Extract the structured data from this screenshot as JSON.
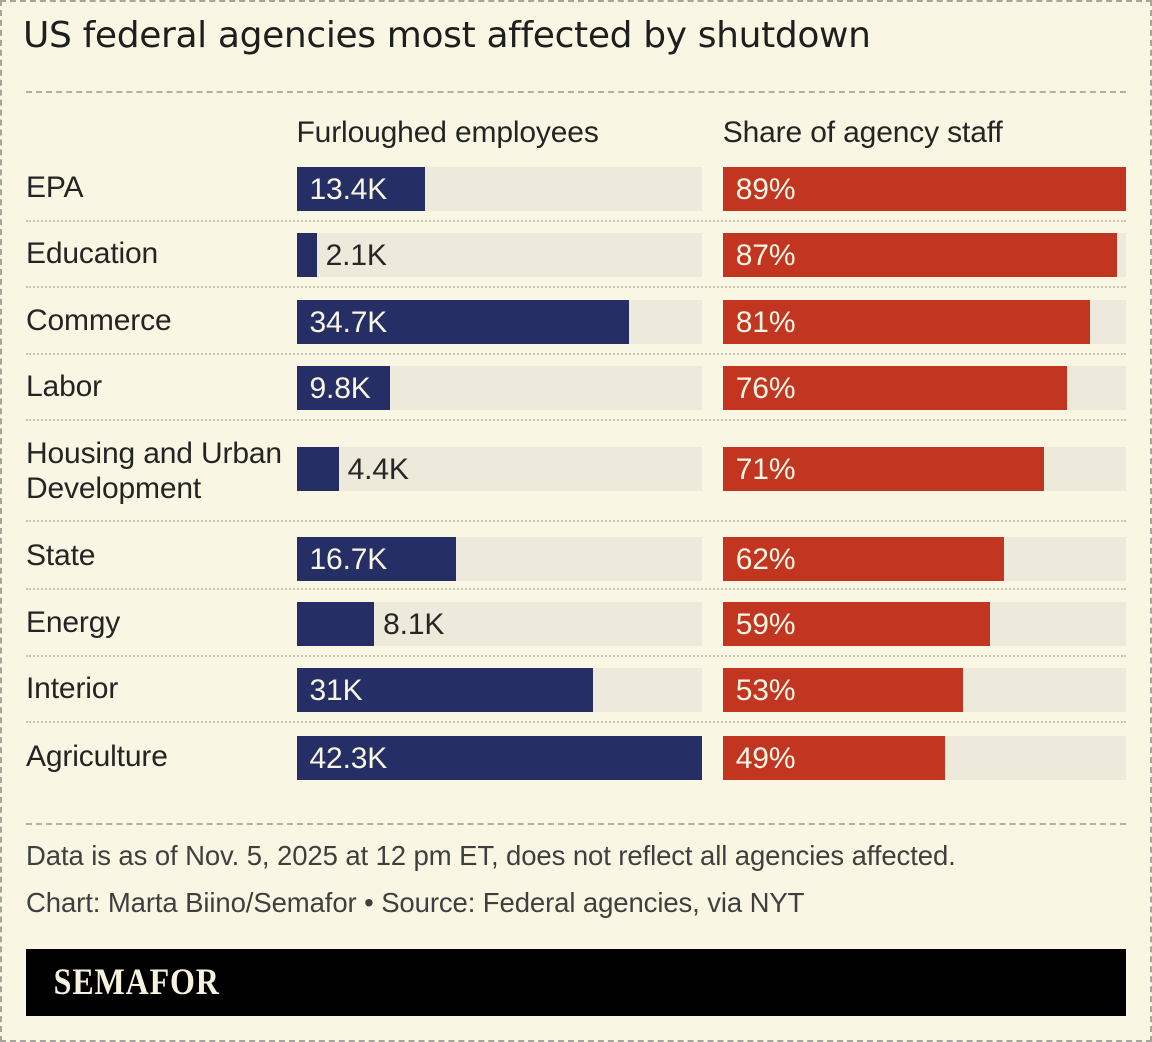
{
  "title": "US federal agencies most affected by shutdown",
  "chart_data": {
    "type": "bar",
    "title": "US federal agencies most affected by shutdown",
    "categories": [
      "EPA",
      "Education",
      "Commerce",
      "Labor",
      "Housing and Urban Development",
      "State",
      "Energy",
      "Interior",
      "Agriculture"
    ],
    "series": [
      {
        "name": "Furloughed employees",
        "values": [
          13.4,
          2.1,
          34.7,
          9.8,
          4.4,
          16.7,
          8.1,
          31,
          42.3
        ],
        "labels": [
          "13.4K",
          "2.1K",
          "34.7K",
          "9.8K",
          "4.4K",
          "16.7K",
          "8.1K",
          "31K",
          "42.3K"
        ],
        "axis_max": 42.3,
        "color": "#262e66"
      },
      {
        "name": "Share of agency staff",
        "values": [
          89,
          87,
          81,
          76,
          71,
          62,
          59,
          53,
          49
        ],
        "labels": [
          "89%",
          "87%",
          "81%",
          "76%",
          "71%",
          "62%",
          "59%",
          "53%",
          "49%"
        ],
        "axis_max": 89,
        "color": "#c23520"
      }
    ],
    "legend_position": "column-headers",
    "grid": false,
    "track_color": "#edeadb",
    "background_color": "#f9f6e3"
  },
  "notes": {
    "data_note": "Data is as of Nov. 5, 2025 at 12 pm ET, does not reflect all agencies affected.",
    "credit": "Chart: Marta Biino/Semafor • Source: Federal agencies, via NYT"
  },
  "footer": {
    "brand": "SEMAFOR"
  },
  "colors": {
    "background": "#f9f6e3",
    "bar_blue": "#262e66",
    "bar_red": "#c23520",
    "track": "#edeadb",
    "brand_bar": "#000000",
    "brand_text": "#f6f2df"
  }
}
